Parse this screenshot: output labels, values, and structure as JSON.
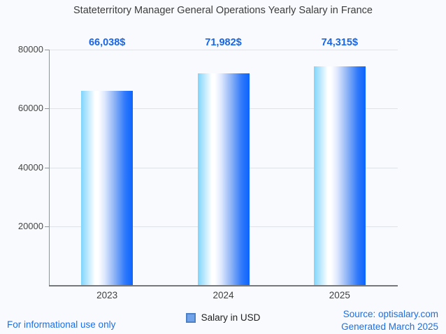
{
  "title": "Stateterritory Manager General Operations Yearly Salary in France",
  "legend": {
    "label": "Salary in USD",
    "swatch_fill": "#70a3ea",
    "swatch_border": "#4d80c4"
  },
  "footer": {
    "left": "For informational use only",
    "source": "Source: optisalary.com",
    "generated": "Generated March 2025"
  },
  "colors": {
    "background": "#f9fafd",
    "title_text": "#3c3c3c",
    "annotation_blue": "#1766e8",
    "footer_blue": "#1a6fe8",
    "axis_text": "#464646",
    "gridline": "#dfe2e7",
    "bar_gradient": [
      "#7fd4fb",
      "#ffffff",
      "#0b63fe"
    ]
  },
  "chart_data": {
    "type": "bar",
    "title": "Stateterritory Manager General Operations Yearly Salary in France",
    "categories": [
      "2023",
      "2024",
      "2025"
    ],
    "series": [
      {
        "name": "Salary in USD",
        "values": [
          66038,
          71982,
          74315
        ]
      }
    ],
    "value_labels": [
      "66,038$",
      "71,982$",
      "74,315$"
    ],
    "xlabel": "",
    "ylabel": "",
    "ylim": [
      0,
      80000
    ],
    "yticks": [
      20000,
      40000,
      60000,
      80000
    ],
    "grid": true,
    "legend_position": "bottom"
  }
}
